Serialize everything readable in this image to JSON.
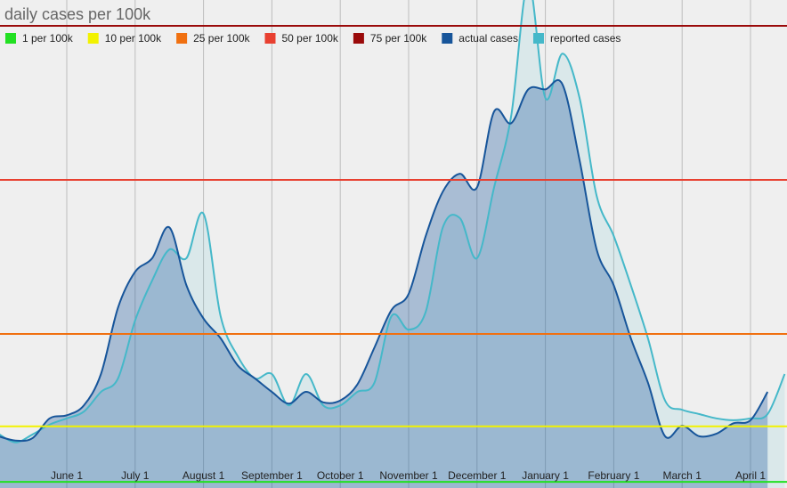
{
  "chart_data": {
    "type": "line",
    "title": "daily cases per 100k",
    "categories": [
      null,
      null,
      null,
      null,
      "June 1",
      null,
      null,
      null,
      "July 1",
      null,
      null,
      null,
      "August 1",
      null,
      null,
      null,
      "September 1",
      null,
      null,
      null,
      "October 1",
      null,
      null,
      null,
      "November 1",
      null,
      null,
      null,
      "December 1",
      null,
      null,
      null,
      "January 1",
      null,
      null,
      null,
      "February 1",
      null,
      null,
      null,
      "March 1",
      null,
      null,
      null,
      "April 1",
      null,
      null
    ],
    "series": [
      {
        "name": "actual cases",
        "color": "#17559a",
        "values": [
          8.4,
          7.7,
          8.1,
          11.3,
          11.8,
          13.4,
          18.5,
          29.3,
          35.1,
          37.3,
          42.3,
          32.9,
          27.5,
          24.3,
          19.9,
          17.8,
          15.6,
          13.7,
          15.6,
          13.9,
          14.2,
          16.8,
          22.8,
          28.9,
          31.5,
          40.9,
          48.1,
          51,
          48.8,
          61.1,
          59.2,
          64.7,
          64.7,
          65.5,
          53.2,
          38.7,
          32.9,
          24.3,
          17.1,
          8.4,
          10.1,
          8.4,
          8.8,
          10.5,
          11,
          15.6,
          null
        ]
      },
      {
        "name": "reported cases",
        "color": "#45b8c9",
        "values": [
          8.8,
          7.4,
          8.7,
          10.3,
          11.3,
          12.4,
          15.6,
          17.8,
          27.2,
          33.7,
          38.7,
          37.3,
          44.5,
          27.9,
          21.4,
          17.8,
          18.5,
          13.4,
          18.5,
          13.4,
          13.4,
          15.6,
          17.1,
          27.9,
          25.7,
          28.6,
          42.3,
          43.8,
          37.3,
          48.8,
          60.4,
          82,
          63.3,
          70.5,
          63.3,
          47.4,
          40.9,
          32.9,
          24.3,
          14.2,
          12.7,
          12,
          11.3,
          11,
          11.3,
          12,
          18.5
        ]
      }
    ],
    "thresholds": [
      {
        "name": "1 per 100k",
        "value": 1,
        "color": "#22e022"
      },
      {
        "name": "10 per 100k",
        "value": 10,
        "color": "#f2f200"
      },
      {
        "name": "25 per 100k",
        "value": 25,
        "color": "#f07010"
      },
      {
        "name": "50 per 100k",
        "value": 50,
        "color": "#e84030"
      },
      {
        "name": "75 per 100k",
        "value": 75,
        "color": "#9a0a0a"
      }
    ],
    "ylim": [
      0,
      79.2
    ],
    "grid": true
  }
}
